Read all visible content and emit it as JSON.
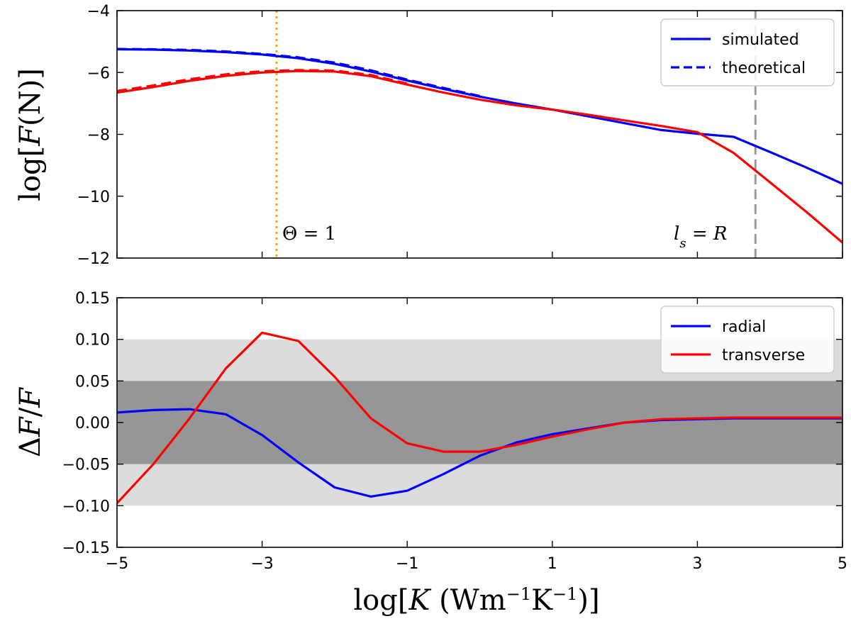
{
  "chart_data": [
    {
      "type": "line",
      "panel": "top",
      "ylabel": "log[F(N)]",
      "xlim": [
        -5,
        5
      ],
      "ylim": [
        -12,
        -4
      ],
      "xticks": [
        -5,
        -3,
        -1,
        1,
        3,
        5
      ],
      "yticks": [
        -12,
        -10,
        -8,
        -6,
        -4
      ],
      "ytick_labels": [
        "−12",
        "−10",
        "−8",
        "−6",
        "−4"
      ],
      "show_x_tick_labels": false,
      "legend": {
        "placement": "top-right",
        "entries": [
          {
            "label": "simulated",
            "color": "#0000ff",
            "style": "solid"
          },
          {
            "label": "theoretical",
            "color": "#0000ff",
            "style": "dashed"
          }
        ]
      },
      "vlines": [
        {
          "x": -2.8,
          "color": "#ffa500",
          "style": "dotted",
          "label": "Θ = 1"
        },
        {
          "x": 3.8,
          "color": "#999999",
          "style": "dashed",
          "label": "l_s = R"
        }
      ],
      "series": [
        {
          "color": "#0000ff",
          "style": "solid",
          "x": [
            -5,
            -4.5,
            -4,
            -3.5,
            -3,
            -2.5,
            -2,
            -1.5,
            -1,
            -0.5,
            0,
            0.5,
            1,
            1.5,
            2,
            2.5,
            3,
            3.5,
            4,
            4.5,
            5
          ],
          "y": [
            -5.25,
            -5.26,
            -5.29,
            -5.34,
            -5.42,
            -5.54,
            -5.72,
            -5.97,
            -6.26,
            -6.53,
            -6.78,
            -7.0,
            -7.2,
            -7.42,
            -7.64,
            -7.86,
            -7.98,
            -8.08,
            -8.57,
            -9.07,
            -9.6
          ]
        },
        {
          "color": "#0000ff",
          "style": "dashed",
          "x": [
            -5,
            -4.5,
            -4,
            -3.5,
            -3,
            -2.5,
            -2,
            -1.5,
            -1,
            -0.5,
            0
          ],
          "y": [
            -5.24,
            -5.25,
            -5.27,
            -5.32,
            -5.4,
            -5.51,
            -5.68,
            -5.93,
            -6.23,
            -6.5,
            -6.76
          ]
        },
        {
          "color": "#ff0000",
          "style": "solid",
          "x": [
            -5,
            -4.5,
            -4,
            -3.5,
            -3,
            -2.5,
            -2,
            -1.5,
            -1,
            -0.5,
            0,
            0.5,
            1,
            1.5,
            2,
            2.5,
            3,
            3.5,
            4,
            4.5,
            5
          ],
          "y": [
            -6.65,
            -6.47,
            -6.27,
            -6.11,
            -6.0,
            -5.95,
            -5.97,
            -6.12,
            -6.39,
            -6.65,
            -6.88,
            -7.06,
            -7.2,
            -7.37,
            -7.55,
            -7.73,
            -7.93,
            -8.6,
            -9.55,
            -10.5,
            -11.5
          ]
        },
        {
          "color": "#ff0000",
          "style": "dashed",
          "x": [
            -5,
            -4.5,
            -4,
            -3.5,
            -3,
            -2.5,
            -2,
            -1.5,
            -1
          ],
          "y": [
            -6.6,
            -6.42,
            -6.22,
            -6.06,
            -5.96,
            -5.92,
            -5.94,
            -6.08,
            -6.36
          ]
        }
      ]
    },
    {
      "type": "line",
      "panel": "bottom",
      "xlabel": "log[K (Wm⁻¹K⁻¹)]",
      "ylabel": "ΔF/F",
      "xlim": [
        -5,
        5
      ],
      "ylim": [
        -0.15,
        0.15
      ],
      "xticks": [
        -5,
        -3,
        -1,
        1,
        3,
        5
      ],
      "xtick_labels": [
        "−5",
        "−3",
        "−1",
        "1",
        "3",
        "5"
      ],
      "yticks": [
        -0.15,
        -0.1,
        -0.05,
        0.0,
        0.05,
        0.1,
        0.15
      ],
      "ytick_labels": [
        "−0.15",
        "−0.10",
        "−0.05",
        "0.00",
        "0.05",
        "0.10",
        "0.15"
      ],
      "bands": [
        {
          "y": [
            -0.1,
            0.1
          ],
          "color": "#dcdcdc"
        },
        {
          "y": [
            -0.05,
            0.05
          ],
          "color": "#969696"
        }
      ],
      "legend": {
        "placement": "top-right",
        "entries": [
          {
            "label": "radial",
            "color": "#0000ff",
            "style": "solid"
          },
          {
            "label": "transverse",
            "color": "#ff0000",
            "style": "solid"
          }
        ]
      },
      "series": [
        {
          "name": "radial",
          "color": "#0000ff",
          "style": "solid",
          "x": [
            -5,
            -4.5,
            -4,
            -3.5,
            -3,
            -2.5,
            -2,
            -1.5,
            -1,
            -0.5,
            0,
            0.5,
            1,
            1.5,
            2,
            2.5,
            3,
            3.5,
            4,
            4.5,
            5
          ],
          "y": [
            0.012,
            0.015,
            0.016,
            0.01,
            -0.015,
            -0.048,
            -0.078,
            -0.089,
            -0.082,
            -0.062,
            -0.04,
            -0.024,
            -0.014,
            -0.007,
            0.0,
            0.003,
            0.004,
            0.005,
            0.005,
            0.005,
            0.005
          ]
        },
        {
          "name": "transverse",
          "color": "#ff0000",
          "style": "solid",
          "x": [
            -5,
            -4.5,
            -4,
            -3.5,
            -3,
            -2.5,
            -2,
            -1.5,
            -1,
            -0.5,
            0,
            0.5,
            1,
            1.5,
            2,
            2.5,
            3,
            3.5,
            4,
            4.5,
            5
          ],
          "y": [
            -0.097,
            -0.05,
            0.005,
            0.065,
            0.108,
            0.098,
            0.055,
            0.005,
            -0.025,
            -0.035,
            -0.035,
            -0.027,
            -0.017,
            -0.008,
            0.0,
            0.004,
            0.005,
            0.006,
            0.006,
            0.006,
            0.006
          ]
        }
      ]
    }
  ]
}
